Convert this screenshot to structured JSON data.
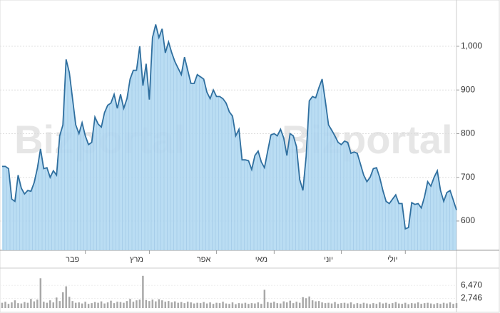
{
  "watermark": "Bizportal",
  "chart_data": [
    {
      "type": "area",
      "color": "#2f6f9f",
      "fill": "#b3d9f2",
      "categories": [
        null,
        null,
        null,
        null,
        null,
        null,
        null,
        null,
        null,
        null,
        null,
        null,
        null,
        null,
        null,
        null,
        null,
        null,
        null,
        null,
        null,
        null,
        "פבר",
        null,
        null,
        null,
        null,
        null,
        null,
        null,
        null,
        null,
        null,
        null,
        null,
        null,
        null,
        null,
        null,
        null,
        null,
        null,
        "מרץ",
        null,
        null,
        null,
        null,
        null,
        null,
        null,
        null,
        null,
        null,
        null,
        null,
        null,
        null,
        null,
        null,
        null,
        null,
        null,
        null,
        "אפר",
        null,
        null,
        null,
        null,
        null,
        null,
        null,
        null,
        null,
        null,
        null,
        null,
        null,
        null,
        null,
        null,
        null,
        "מאי",
        null,
        null,
        null,
        null,
        null,
        null,
        null,
        null,
        null,
        null,
        null,
        null,
        null,
        null,
        null,
        null,
        null,
        null,
        null,
        null,
        "יוני",
        null,
        null,
        null,
        null,
        null,
        null,
        null,
        null,
        null,
        null,
        null,
        null,
        null,
        null,
        null,
        null,
        null,
        null,
        null,
        "יולי",
        null,
        null,
        null,
        null,
        null,
        null,
        null,
        null,
        null,
        null,
        null,
        null,
        null,
        null,
        null,
        null,
        null,
        null,
        null,
        null
      ],
      "values": [
        725,
        725,
        720,
        650,
        645,
        705,
        675,
        662,
        670,
        668,
        688,
        720,
        765,
        720,
        722,
        700,
        715,
        705,
        795,
        820,
        970,
        940,
        880,
        820,
        800,
        825,
        795,
        775,
        780,
        838,
        822,
        815,
        848,
        865,
        870,
        890,
        858,
        890,
        858,
        880,
        925,
        945,
        945,
        1000,
        910,
        960,
        878,
        1020,
        1050,
        1020,
        1040,
        985,
        1010,
        985,
        965,
        950,
        935,
        975,
        945,
        915,
        915,
        935,
        930,
        925,
        895,
        880,
        900,
        885,
        885,
        880,
        870,
        850,
        840,
        795,
        810,
        740,
        740,
        738,
        718,
        750,
        760,
        735,
        722,
        760,
        797,
        800,
        795,
        810,
        790,
        750,
        800,
        795,
        770,
        695,
        670,
        748,
        875,
        885,
        882,
        905,
        925,
        875,
        820,
        808,
        795,
        780,
        775,
        783,
        780,
        755,
        758,
        755,
        730,
        705,
        690,
        700,
        720,
        722,
        700,
        670,
        645,
        640,
        650,
        660,
        640,
        640,
        582,
        585,
        642,
        638,
        640,
        630,
        655,
        690,
        680,
        700,
        715,
        670,
        645,
        665,
        670,
        648,
        625
      ],
      "ylim": [
        533,
        1106
      ],
      "yticks": [
        600,
        700,
        800,
        900,
        {
          "value": 1000,
          "label": "1,000"
        }
      ],
      "grid": true
    },
    {
      "type": "bar",
      "color": "#a8a8a8",
      "values": [
        1500,
        1800,
        1200,
        1600,
        2200,
        1400,
        1300,
        1700,
        1500,
        2600,
        1900,
        2400,
        8500,
        1800,
        1500,
        2200,
        1600,
        3000,
        2000,
        4500,
        6200,
        3200,
        2000,
        1500,
        1600,
        1300,
        1800,
        1200,
        1400,
        1700,
        1500,
        1900,
        1300,
        1600,
        2100,
        1400,
        1800,
        1700,
        1500,
        2000,
        2600,
        1800,
        2200,
        2400,
        9200,
        2300,
        2000,
        2400,
        1900,
        2500,
        2200,
        1800,
        2000,
        1600,
        1900,
        1500,
        1700,
        1400,
        1800,
        1600,
        1300,
        1500,
        1400,
        1700,
        1300,
        1600,
        1200,
        1500,
        1400,
        1800,
        1300,
        1200,
        1600,
        1100,
        1400,
        1300,
        1500,
        1200,
        1400,
        1300,
        1600,
        1200,
        5200,
        1700,
        1500,
        1800,
        1400,
        1300,
        1900,
        1600,
        2100,
        1400,
        1800,
        1500,
        3100,
        2800,
        3300,
        2200,
        1900,
        2000,
        1600,
        1400,
        1500,
        1300,
        1700,
        1200,
        1400,
        1500,
        1300,
        1600,
        1100,
        1400,
        1200,
        1500,
        1300,
        1100,
        1400,
        1200,
        1600,
        1300,
        1500,
        1200,
        1400,
        1700,
        1300,
        1200,
        1500,
        1100,
        1400,
        1300,
        1600,
        1200,
        1400,
        1500,
        1300,
        1100,
        1400,
        1200,
        1500,
        1300,
        1600,
        1200,
        1400
      ],
      "ylim": [
        0,
        11000
      ],
      "yticks": [
        {
          "value": 2746,
          "label": "2,746"
        },
        {
          "value": 6470,
          "label": "6,470"
        }
      ]
    }
  ]
}
